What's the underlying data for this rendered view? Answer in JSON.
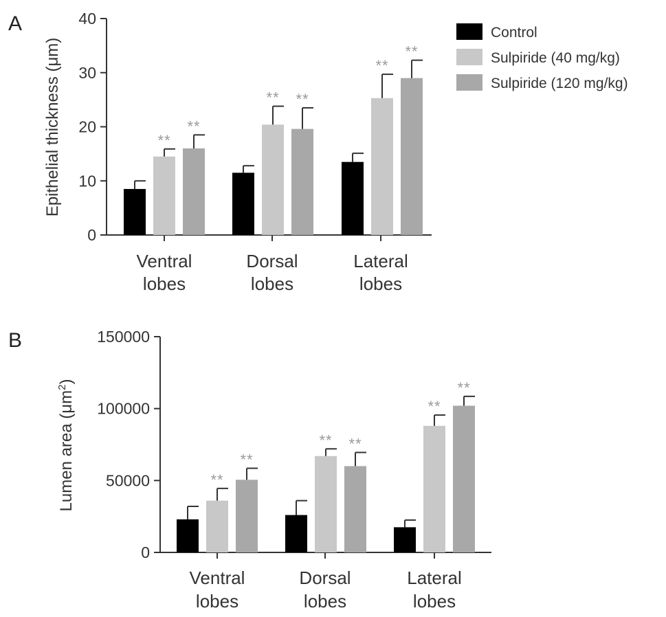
{
  "legend": [
    {
      "label": "Control",
      "color": "#000000"
    },
    {
      "label": "Sulpiride (40 mg/kg)",
      "color": "#c8c8c8"
    },
    {
      "label": "Sulpiride (120 mg/kg)",
      "color": "#a8a8a8"
    }
  ],
  "chart_data": [
    {
      "panel": "A",
      "type": "bar",
      "ylabel_main": "Epithelial thickness (",
      "ylabel_unit": "μm",
      "ylabel_end": ")",
      "ylim": [
        0,
        40
      ],
      "yticks": [
        0,
        10,
        20,
        30,
        40
      ],
      "categories": [
        [
          "Ventral",
          "lobes"
        ],
        [
          "Dorsal",
          "lobes"
        ],
        [
          "Lateral",
          "lobes"
        ]
      ],
      "grid": false,
      "series": [
        {
          "name": "Control",
          "color": "#000000",
          "values": [
            8.5,
            11.5,
            13.5
          ],
          "errors": [
            1.5,
            1.3,
            1.6
          ],
          "sig": [
            "",
            "",
            ""
          ]
        },
        {
          "name": "Sulpiride (40 mg/kg)",
          "color": "#c8c8c8",
          "values": [
            14.5,
            20.4,
            25.3
          ],
          "errors": [
            1.4,
            3.4,
            4.4
          ],
          "sig": [
            "**",
            "**",
            "**"
          ]
        },
        {
          "name": "Sulpiride (120 mg/kg)",
          "color": "#a8a8a8",
          "values": [
            16.0,
            19.6,
            29.0
          ],
          "errors": [
            2.5,
            3.9,
            3.3
          ],
          "sig": [
            "**",
            "**",
            "**"
          ]
        }
      ]
    },
    {
      "panel": "B",
      "type": "bar",
      "ylabel_main": "Lumen area (",
      "ylabel_unit": "μm",
      "ylabel_sup": "2",
      "ylabel_end": ")",
      "ylim": [
        0,
        150000
      ],
      "yticks": [
        0,
        50000,
        100000,
        150000
      ],
      "categories": [
        [
          "Ventral",
          "lobes"
        ],
        [
          "Dorsal",
          "lobes"
        ],
        [
          "Lateral",
          "lobes"
        ]
      ],
      "grid": false,
      "series": [
        {
          "name": "Control",
          "color": "#000000",
          "values": [
            23000,
            26000,
            17500
          ],
          "errors": [
            9000,
            10000,
            5000
          ],
          "sig": [
            "",
            "",
            ""
          ]
        },
        {
          "name": "Sulpiride (40 mg/kg)",
          "color": "#c8c8c8",
          "values": [
            36000,
            67000,
            88000
          ],
          "errors": [
            8500,
            5000,
            7500
          ],
          "sig": [
            "**",
            "**",
            "**"
          ]
        },
        {
          "name": "Sulpiride (120 mg/kg)",
          "color": "#a8a8a8",
          "values": [
            50500,
            60000,
            102000
          ],
          "errors": [
            8000,
            9500,
            6500
          ],
          "sig": [
            "**",
            "**",
            "**"
          ]
        }
      ]
    }
  ]
}
